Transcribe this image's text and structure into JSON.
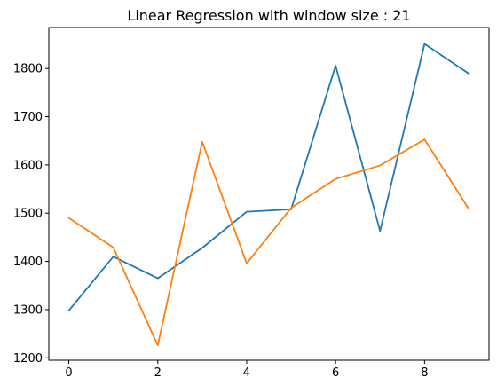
{
  "chart_data": {
    "type": "line",
    "title": "Linear Regression with window size : 21",
    "xlabel": "",
    "ylabel": "",
    "x": [
      0,
      1,
      2,
      3,
      4,
      5,
      6,
      7,
      8,
      9
    ],
    "xlim": [
      -0.45,
      9.45
    ],
    "ylim": [
      1195,
      1885
    ],
    "xticks": [
      0,
      2,
      4,
      6,
      8
    ],
    "yticks": [
      1200,
      1300,
      1400,
      1500,
      1600,
      1700,
      1800
    ],
    "grid": false,
    "legend": "none",
    "series": [
      {
        "color": "#1f77b4",
        "values": [
          1298,
          1410,
          1365,
          1428,
          1503,
          1508,
          1806,
          1463,
          1851,
          1789
        ]
      },
      {
        "color": "#ff7f0e",
        "values": [
          1490,
          1429,
          1226,
          1648,
          1396,
          1511,
          1571,
          1599,
          1653,
          1508
        ]
      }
    ]
  }
}
